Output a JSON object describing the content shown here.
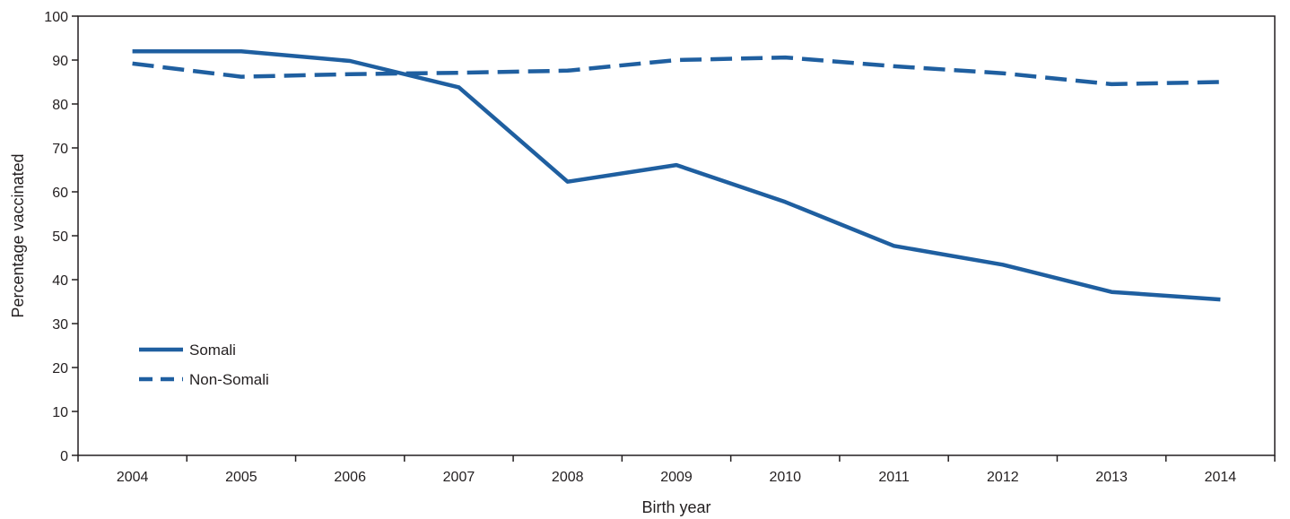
{
  "chart_data": {
    "type": "line",
    "title": "",
    "xlabel": "Birth year",
    "ylabel": "Percentage vaccinated",
    "x": [
      2004,
      2005,
      2006,
      2007,
      2008,
      2009,
      2010,
      2011,
      2012,
      2013,
      2014
    ],
    "xlim": [
      2003.5,
      2014.5
    ],
    "ylim": [
      0,
      100
    ],
    "yticks": [
      0,
      10,
      20,
      30,
      40,
      50,
      60,
      70,
      80,
      90,
      100
    ],
    "grid": false,
    "legend_position": "bottom-left",
    "series": [
      {
        "name": "Somali",
        "style": "solid",
        "color": "#1f5fa0",
        "values": [
          92,
          92,
          89.8,
          83.8,
          62.3,
          66.1,
          57.7,
          47.7,
          43.4,
          37.2,
          35.5
        ]
      },
      {
        "name": "Non-Somali",
        "style": "dashed",
        "color": "#1f5fa0",
        "values": [
          89.2,
          86.2,
          86.8,
          87.1,
          87.6,
          90.0,
          90.6,
          88.6,
          87.0,
          84.5,
          85.0
        ]
      }
    ]
  }
}
